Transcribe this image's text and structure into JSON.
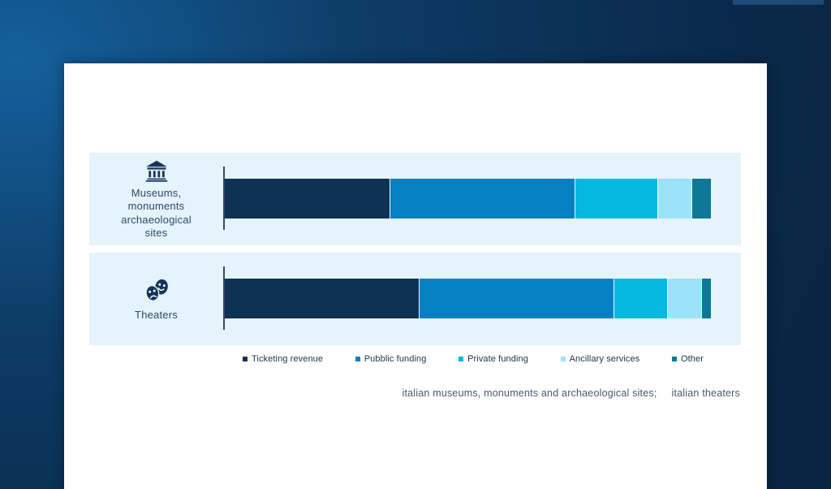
{
  "colors": {
    "bg_light": "#14609c",
    "bg_mid": "#0d3a63",
    "bg_dark": "#0a2a4c",
    "bg_darkest": "#092440",
    "top_strip": "#21507f",
    "card": "#ffffff",
    "band": "#e5f3fa",
    "axis": "#36495f",
    "label_text": "#2b4a6d",
    "legend_text": "#1a3553",
    "caption_text": "#475872",
    "icon": "#16355b"
  },
  "chart_data": {
    "type": "bar",
    "orientation": "horizontal",
    "stacked": true,
    "unit": "percent",
    "xlim": [
      0,
      100
    ],
    "grid": false,
    "legend_position": "bottom",
    "categories": [
      "Museums, monuments archaeological sites",
      "Theaters"
    ],
    "series": [
      {
        "name": "Ticketing revenue",
        "color": "#0d3254",
        "values": [
          34,
          40
        ]
      },
      {
        "name": "Pubblic funding",
        "color": "#0780c3",
        "values": [
          38,
          40
        ]
      },
      {
        "name": "Private funding",
        "color": "#05b8e0",
        "values": [
          17,
          11
        ]
      },
      {
        "name": "Ancillary services",
        "color": "#9be2fb",
        "values": [
          7,
          7
        ]
      },
      {
        "name": "Other",
        "color": "#0d7995",
        "values": [
          4,
          2
        ]
      }
    ]
  },
  "rows": [
    {
      "icon": "museum-icon",
      "label_lines": [
        "Museums,",
        "monuments",
        "archaeological",
        "sites"
      ]
    },
    {
      "icon": "theater-masks-icon",
      "label_lines": [
        "Theaters"
      ]
    }
  ],
  "caption": {
    "part1": "italian museums, monuments and archaeological sites;",
    "part2": "italian theaters"
  }
}
